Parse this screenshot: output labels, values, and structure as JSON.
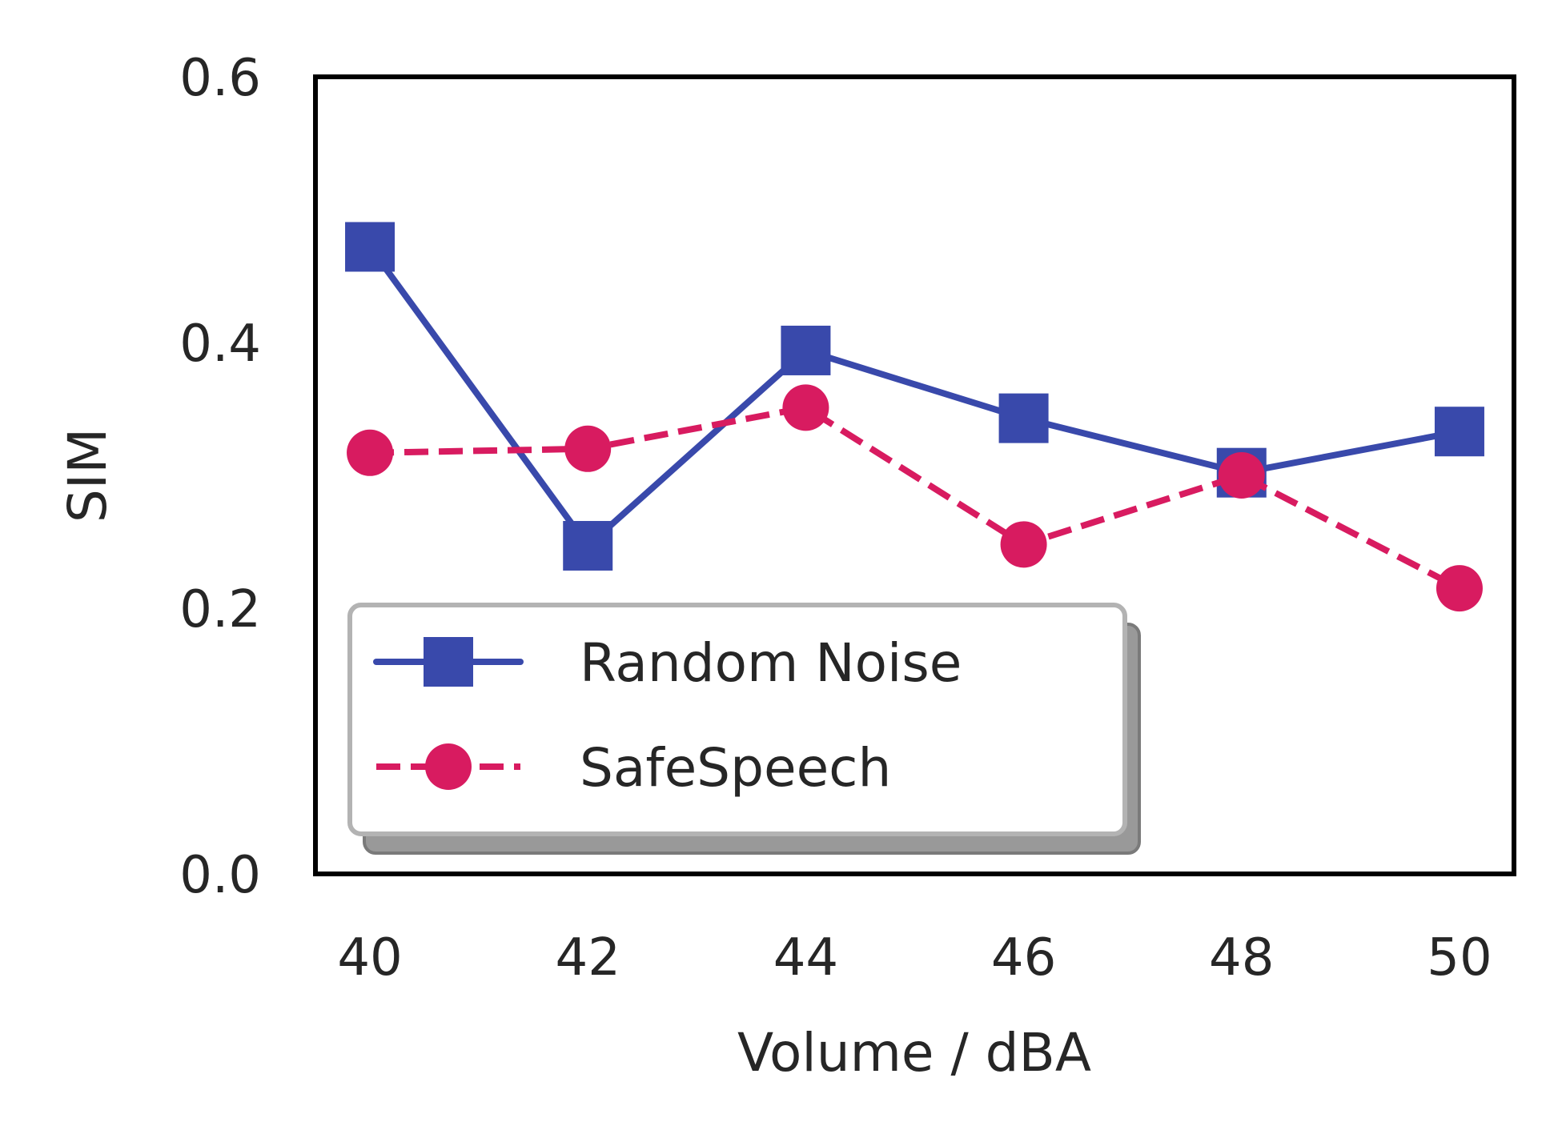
{
  "chart_data": {
    "type": "line",
    "title": "",
    "xlabel": "Volume / dBA",
    "ylabel": "SIM",
    "x": [
      40,
      42,
      44,
      46,
      48,
      50
    ],
    "xticks": [
      "40",
      "42",
      "44",
      "46",
      "48",
      "50"
    ],
    "yticks": [
      "0.0",
      "0.2",
      "0.4",
      "0.6"
    ],
    "ylim": [
      0.0,
      0.6
    ],
    "xlim": [
      39.5,
      50.5
    ],
    "grid": false,
    "legend_position": "lower-left",
    "series": [
      {
        "name": "Random Noise",
        "values": [
          0.472,
          0.247,
          0.394,
          0.343,
          0.302,
          0.333
        ],
        "color": "#3949ab",
        "marker": "square",
        "linestyle": "solid"
      },
      {
        "name": "SafeSpeech",
        "values": [
          0.317,
          0.32,
          0.351,
          0.248,
          0.3,
          0.215
        ],
        "color": "#d81b60",
        "marker": "circle",
        "linestyle": "dashed"
      }
    ]
  }
}
